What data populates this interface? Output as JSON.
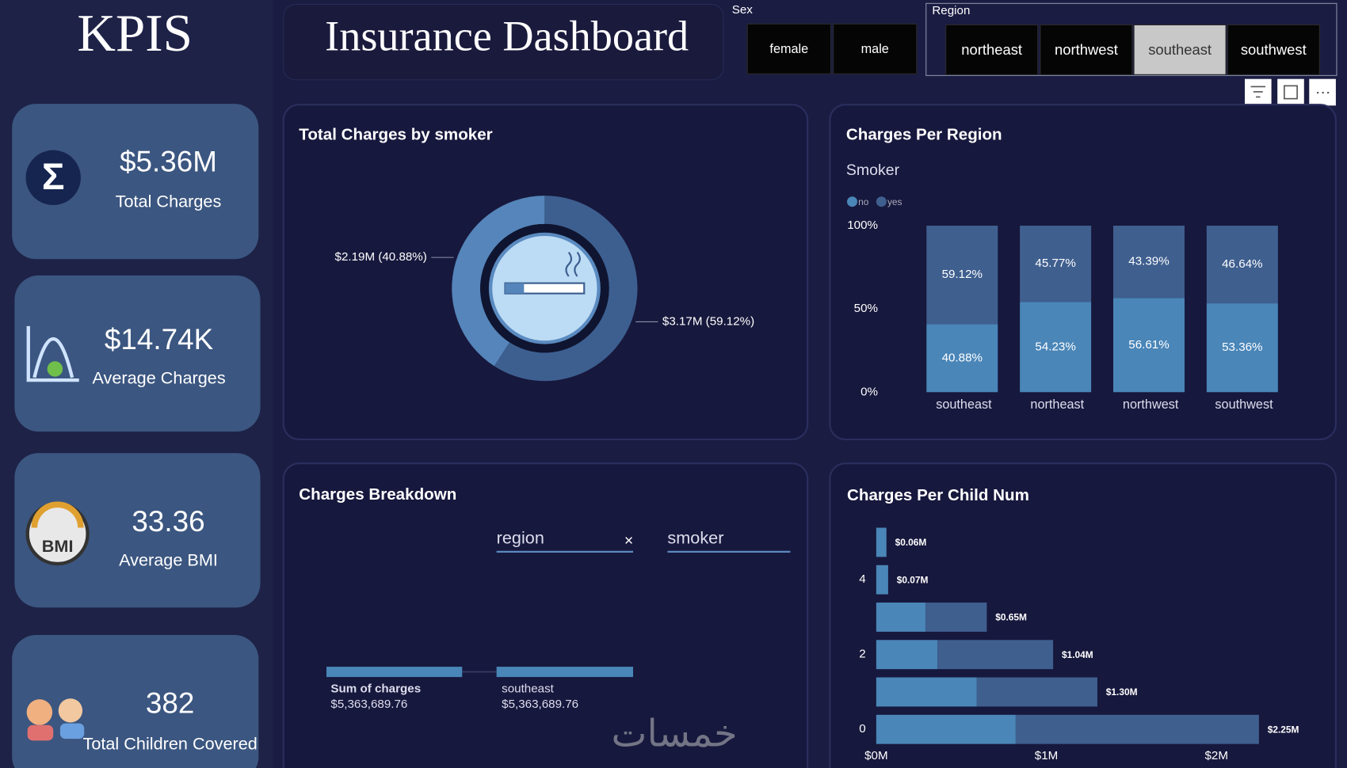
{
  "header": {
    "kpi_title": "KPIS",
    "title": "Insurance Dashboard"
  },
  "slicers": [
    {
      "title": "Sex",
      "options": [
        "female",
        "male"
      ]
    },
    {
      "title": "Region",
      "options": [
        "northeast",
        "northwest",
        "southeast",
        "southwest"
      ],
      "selected": 2
    }
  ],
  "kpis": [
    {
      "value": "$5.36M",
      "label": "Total Charges"
    },
    {
      "value": "$14.74K",
      "label": "Average Charges"
    },
    {
      "value": "33.36",
      "label": "Average BMI"
    },
    {
      "value": "382",
      "label": "Total Children Covered"
    }
  ],
  "chart_data": [
    {
      "type": "donut",
      "title": "Total Charges by smoker",
      "values": [
        2190000,
        3170000
      ],
      "value_labels": [
        "$2.19M (40.88%)",
        "$3.17M (59.12%)"
      ],
      "colors": [
        "#5585ba",
        "#3d5f90"
      ]
    },
    {
      "type": "stacked_bar_100",
      "title": "Charges Per Region",
      "legend_title": "Smoker",
      "categories": [
        "southeast",
        "northeast",
        "northwest",
        "southwest"
      ],
      "series": [
        {
          "name": "no",
          "color": "#4a86b8",
          "values": [
            40.88,
            54.23,
            56.61,
            53.36
          ],
          "value_labels": [
            "40.88%",
            "54.23%",
            "56.61%",
            "53.36%"
          ]
        },
        {
          "name": "yes",
          "color": "#3f5f8f",
          "values": [
            59.12,
            45.77,
            43.39,
            46.64
          ],
          "value_labels": [
            "59.12%",
            "45.77%",
            "43.39%",
            "46.64%"
          ]
        }
      ],
      "ylim": [
        0,
        100
      ],
      "yticks": [
        {
          "value": 0,
          "label": "0%"
        },
        {
          "value": 50,
          "label": "50%"
        },
        {
          "value": 100,
          "label": "100%"
        }
      ]
    },
    {
      "type": "hbar_stacked",
      "title": "Charges Per Child Num",
      "categories": [
        "0",
        null,
        "2",
        null,
        "4",
        null
      ],
      "series": [
        {
          "color": "#4a86b8",
          "values": [
            820000,
            590000,
            360000,
            290000,
            70000,
            60000
          ]
        },
        {
          "color": "#3f5f8f",
          "values": [
            1430000,
            710000,
            680000,
            360000,
            0,
            0
          ]
        }
      ],
      "total_labels": [
        "$2.25M",
        "$1.30M",
        "$1.04M",
        "$0.65M",
        "$0.07M",
        "$0.06M"
      ],
      "xlim": [
        0,
        2500000
      ],
      "xticks": [
        {
          "value": 0,
          "label": "$0M"
        },
        {
          "value": 1000000,
          "label": "$1M"
        },
        {
          "value": 2000000,
          "label": "$2M"
        }
      ]
    }
  ],
  "breakdown": {
    "title": "Charges Breakdown",
    "fields": [
      "region",
      "smoker"
    ],
    "nodes": [
      {
        "label": "Sum of charges",
        "value": "$5,363,689.76"
      },
      {
        "label": "southeast",
        "value": "$5,363,689.76"
      }
    ]
  },
  "watermark": "خمسات"
}
